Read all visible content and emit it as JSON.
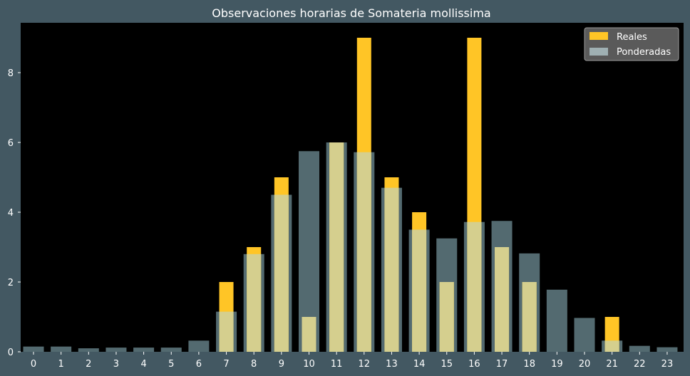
{
  "chart_data": {
    "type": "bar",
    "title": "Observaciones horarias de Somateria mollissima",
    "xlabel": "",
    "ylabel": "",
    "categories": [
      "0",
      "1",
      "2",
      "3",
      "4",
      "5",
      "6",
      "7",
      "8",
      "9",
      "10",
      "11",
      "12",
      "13",
      "14",
      "15",
      "16",
      "17",
      "18",
      "19",
      "20",
      "21",
      "22",
      "23"
    ],
    "series": [
      {
        "name": "Reales",
        "color": "#ffc526",
        "values": [
          0,
          0,
          0,
          0,
          0,
          0,
          0,
          2,
          3,
          5,
          1,
          6,
          9,
          5,
          4,
          2,
          9,
          3,
          2,
          0,
          0,
          1,
          0,
          0
        ]
      },
      {
        "name": "Ponderadas",
        "color": "#9fb0b3",
        "values": [
          0.15,
          0.15,
          0.1,
          0.12,
          0.12,
          0.12,
          0.32,
          1.15,
          2.8,
          4.5,
          5.75,
          6.0,
          5.72,
          4.7,
          3.5,
          3.25,
          3.72,
          3.75,
          2.82,
          1.78,
          0.97,
          0.32,
          0.17,
          0.13
        ]
      }
    ],
    "yticks": [
      0,
      2,
      4,
      6,
      8
    ],
    "ylim": [
      0,
      9.45
    ],
    "grid": false,
    "legend_position": "top-right",
    "background": "#000000",
    "figure_background": "#435862"
  }
}
